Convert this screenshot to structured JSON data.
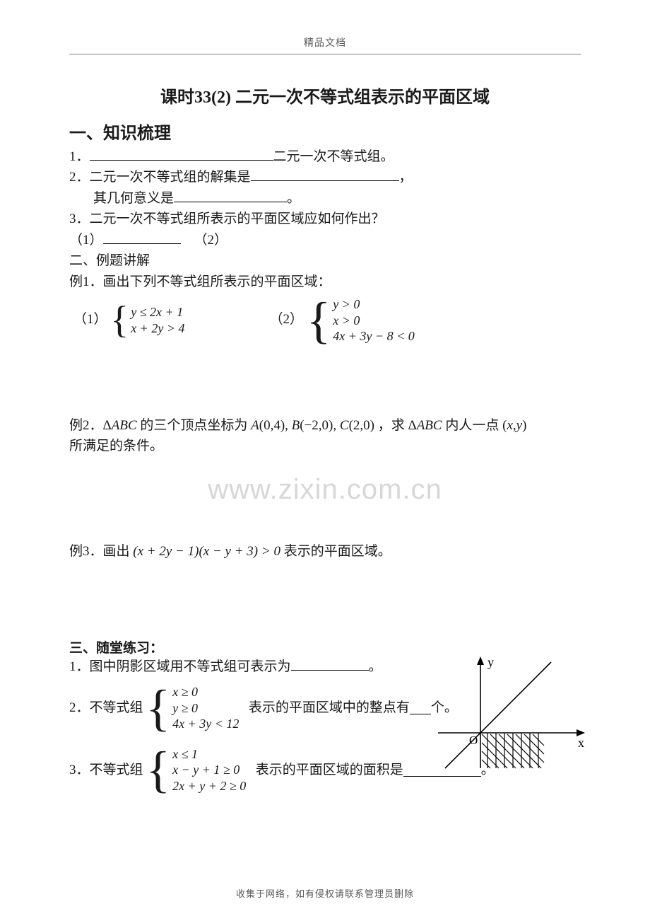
{
  "header": {
    "label": "精品文档"
  },
  "title": "课时33(2)  二元一次不等式组表示的平面区域",
  "section1": {
    "heading": "一、知识梳理",
    "item1_suffix": "二元一次不等式组。",
    "item2_prefix": "2．二元一次不等式组的解集是",
    "item2_comma": "，",
    "item2_line2_prefix": "其几何意义是",
    "item2_line2_suffix": "。",
    "item3": "3．二元一次不等式组所表示的平面区域应如何作出？",
    "item3_sub1": "（1）",
    "item3_sub2": "（2）"
  },
  "section2_heading": "二、例题讲解",
  "ex1": {
    "prompt": "例1．画出下列不等式组所表示的平面区域：",
    "s1_label": "（1）",
    "s1_l1": "y ≤ 2x + 1",
    "s1_l2": "x + 2y > 4",
    "s2_label": "（2）",
    "s2_l1": "y > 0",
    "s2_l2": "x > 0",
    "s2_l3": "4x + 3y − 8 < 0"
  },
  "ex2": {
    "line1_a": "例2．",
    "line1_b": "Δ<span class=\"math\">ABC</span> 的三个顶点坐标为 <span class=\"math\">A</span><span class=\"mathup\">(0,4)</span>, <span class=\"math\">B</span><span class=\"mathup\">(−2,0)</span>, <span class=\"math\">C</span><span class=\"mathup\">(2,0)</span> ，求 Δ<span class=\"math\">ABC</span> 内人一点 <span class=\"mathup\">(</span><span class=\"math\">x</span><span class=\"mathup\">,</span><span class=\"math\">y</span><span class=\"mathup\">)</span>",
    "line2": "所满足的条件。"
  },
  "ex3": {
    "text_a": "例3．画出",
    "expr": "(<span class=\"math\">x</span> + 2<span class=\"math\">y</span> − 1)(<span class=\"math\">x</span> − <span class=\"math\">y</span> + 3) > 0",
    "text_b": "表示的平面区域。"
  },
  "section3": {
    "heading": "三、随堂练习：",
    "p1_a": "1．图中阴影区域用不等式组可表示为",
    "p1_b": "。",
    "p2_a": "2．不等式组",
    "p2_l1": "x ≥ 0",
    "p2_l2": "y ≥ 0",
    "p2_l3": "4x + 3y < 12",
    "p2_mid": "表示的平面区域中的整点有",
    "p2_end": "个。",
    "p3_a": "3．不等式组",
    "p3_l1": "x ≤ 1",
    "p3_l2": "x − y + 1 ≥ 0",
    "p3_l3": "2x + y + 2 ≥ 0",
    "p3_mid": "表示的平面区域的面积是",
    "p3_end": "。"
  },
  "graph": {
    "y_label": "y",
    "x_label": "x",
    "origin_label": "O",
    "axis_color": "#000000",
    "hatch_color": "#000000",
    "arrowhead_size": 8
  },
  "watermark": "www.zixin.com.cn",
  "footer": "收集于网络，如有侵权请联系管理员删除"
}
